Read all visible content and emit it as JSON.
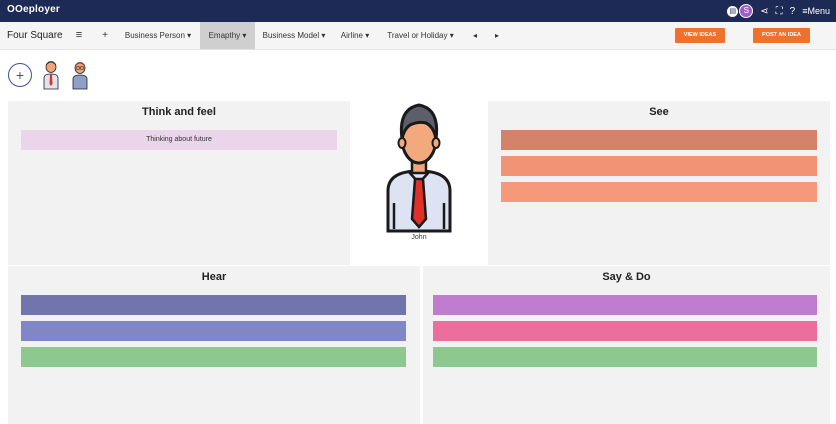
{
  "app": {
    "brand": "OOeployer",
    "menu_label": "≡Menu",
    "avatar_letter": "S"
  },
  "toolbar": {
    "title": "Four Square",
    "hamburger": "≡",
    "plus": "+",
    "tabs": [
      "Business Person ▾",
      "Emapthy ▾",
      "Business Model ▾",
      "Airline ▾",
      "Travel or Holiday ▾"
    ],
    "prev": "◂",
    "next": "▸",
    "view_ideas": "VIEW IDEAS",
    "post_idea": "POST AN IDEA"
  },
  "people": {
    "add": "+"
  },
  "persona": {
    "name": "John"
  },
  "quadrants": {
    "think_feel": {
      "title": "Think and feel",
      "notes": [
        {
          "text": "Thinking about future",
          "color": "#ead5ea"
        }
      ]
    },
    "see": {
      "title": "See",
      "notes": [
        {
          "text": "",
          "color": "#d4826a"
        },
        {
          "text": "",
          "color": "#f19475"
        },
        {
          "text": "",
          "color": "#f5997a"
        }
      ]
    },
    "hear": {
      "title": "Hear",
      "notes": [
        {
          "text": "",
          "color": "#7274ad"
        },
        {
          "text": "",
          "color": "#8086c6"
        },
        {
          "text": "",
          "color": "#8dc98e"
        }
      ]
    },
    "say_do": {
      "title": "Say & Do",
      "notes": [
        {
          "text": "",
          "color": "#c07dd0"
        },
        {
          "text": "",
          "color": "#ea6f9c"
        },
        {
          "text": "",
          "color": "#8dc98e"
        }
      ]
    }
  },
  "colors": {
    "topbar": "#1c2a55",
    "accent_orange": "#f0712b"
  }
}
